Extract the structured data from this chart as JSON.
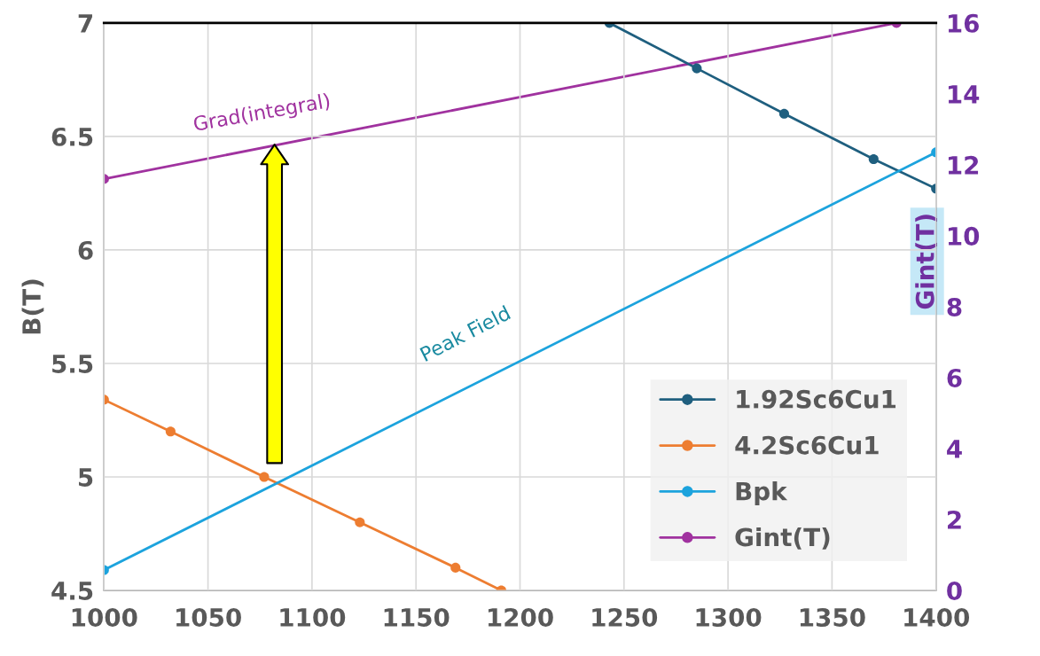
{
  "chart_data": {
    "type": "line",
    "ylabel": "B(T)",
    "y2label": "Gint(T)",
    "series": [
      {
        "name": "1.92Sc6Cu1",
        "color": "#1f5f7f",
        "x": [
          1243,
          1285,
          1327,
          1370,
          1400
        ],
        "values": [
          7.0,
          6.8,
          6.6,
          6.4,
          6.27
        ]
      },
      {
        "name": "4.2Sc6Cu1",
        "color": "#ed7d31",
        "x": [
          1000,
          1032,
          1077,
          1123,
          1169,
          1191
        ],
        "values": [
          5.34,
          5.2,
          5.0,
          4.8,
          4.6,
          4.5
        ]
      },
      {
        "name": "Bpk",
        "color": "#1ca3dd",
        "x": [
          1000,
          1400
        ],
        "values": [
          4.59,
          6.43
        ]
      },
      {
        "name": "Gint(T)",
        "color": "#a0329f",
        "axis": "y2",
        "x": [
          1000,
          1381
        ],
        "values": [
          11.6,
          16.0
        ]
      }
    ],
    "annotations": [
      "Grad(integral)",
      "Peak Field"
    ],
    "xlim": [
      1000,
      1400
    ],
    "xticks": [
      1000,
      1050,
      1100,
      1150,
      1200,
      1250,
      1300,
      1350,
      1400
    ],
    "ylim": [
      4.5,
      7
    ],
    "yticks": [
      4.5,
      5,
      5.5,
      6,
      6.5,
      7
    ],
    "y2lim": [
      0,
      16
    ],
    "y2ticks": [
      0,
      2,
      4,
      6,
      8,
      10,
      12,
      14,
      16
    ],
    "grid": true,
    "legend": "bottom right",
    "marker": "circle",
    "line_style": "solid"
  }
}
